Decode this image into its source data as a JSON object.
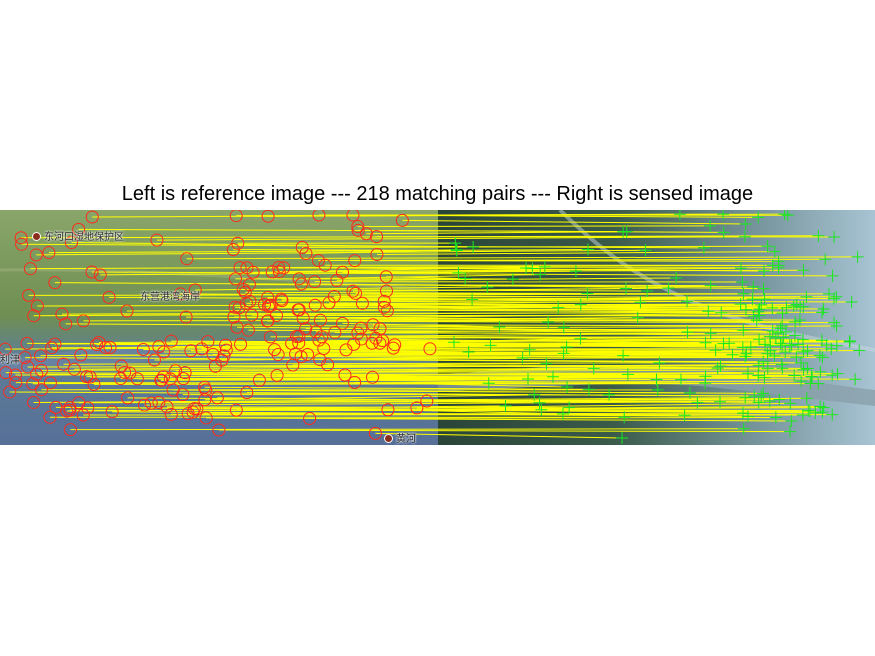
{
  "title": "Left is reference image --- 218 matching pairs --- Right is sensed image",
  "match_count": 218,
  "colors": {
    "reference_marker": "#ff2a1a",
    "sensed_marker": "#19e81f",
    "match_line": "#ffff00",
    "map_land": "#7e9a5a",
    "map_water": "#5e7aa0",
    "satellite_land": "#2c4a40",
    "satellite_water": "#9ab8c8"
  },
  "reference_panel": {
    "labels": [
      "东河口湿地保护区",
      "东营港湾海岸",
      "利津",
      "黄河"
    ],
    "marker_style": "circle"
  },
  "sensed_panel": {
    "marker_style": "cross"
  }
}
